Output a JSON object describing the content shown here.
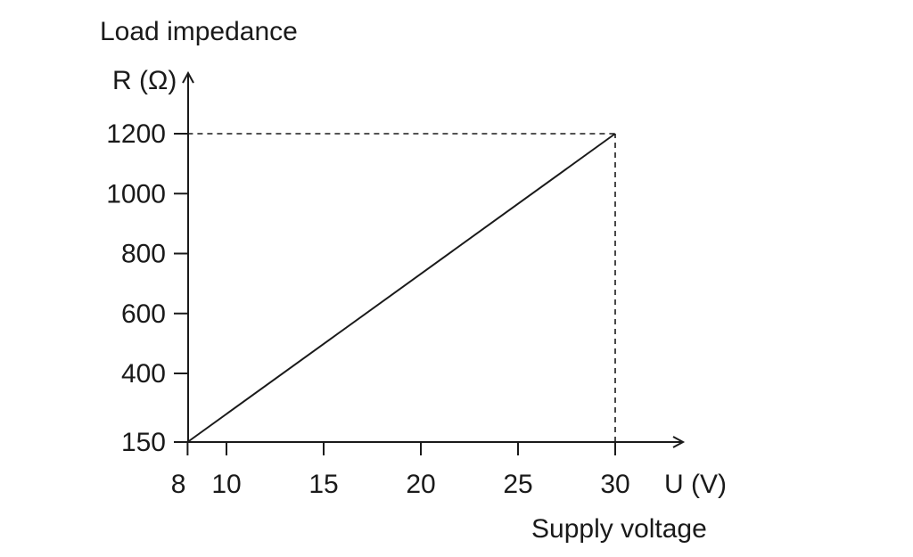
{
  "chart_data": {
    "type": "line",
    "title": "Load impedance",
    "ylabel": "R (Ω)",
    "xlabel": "U (V)",
    "xtitle": "Supply voltage",
    "x_ticks": [
      8,
      10,
      15,
      20,
      25,
      30
    ],
    "y_ticks": [
      150,
      400,
      600,
      800,
      1000,
      1200
    ],
    "xlim": [
      8,
      30
    ],
    "ylim": [
      150,
      1200
    ],
    "series": [
      {
        "x": [
          8,
          30
        ],
        "y": [
          150,
          1200
        ]
      }
    ],
    "reference_lines": [
      {
        "from": [
          8,
          1200
        ],
        "to": [
          30,
          1200
        ],
        "style": "dashed"
      },
      {
        "from": [
          30,
          150
        ],
        "to": [
          30,
          1200
        ],
        "style": "dashed"
      }
    ],
    "grid": false,
    "colors": {
      "line": "#1a1a1a",
      "axis": "#1a1a1a"
    }
  }
}
